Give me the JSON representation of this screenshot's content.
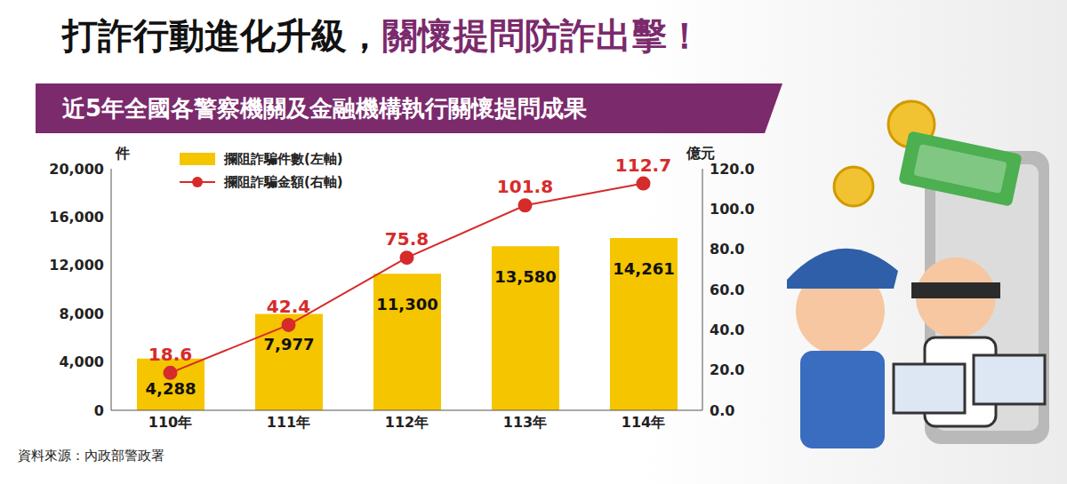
{
  "header": {
    "title": [
      "打詐行動進化升級，",
      "關懷提問防詐出擊！"
    ],
    "subtitle": "近5年全國各警察機關及金融機構執行關懷提問成果"
  },
  "source": "資料來源：內政部警政署",
  "chart_data": {
    "type": "bar",
    "categories": [
      "110年",
      "111年",
      "112年",
      "113年",
      "114年"
    ],
    "y_label": "件",
    "y2_label": "億元",
    "ylim": [
      0,
      20000
    ],
    "yticks": [
      0,
      {
        "value": 4000,
        "label": "4,000"
      },
      {
        "value": 8000,
        "label": "8,000"
      },
      {
        "value": 12000,
        "label": "12,000"
      },
      {
        "value": 16000,
        "label": "16,000"
      },
      {
        "value": 20000,
        "label": "20,000"
      }
    ],
    "y2lim": [
      0,
      120
    ],
    "y2ticks": [
      {
        "value": 0,
        "label": "0.0"
      },
      {
        "value": 20,
        "label": "20.0"
      },
      {
        "value": 40,
        "label": "40.0"
      },
      {
        "value": 60,
        "label": "60.0"
      },
      {
        "value": 80,
        "label": "80.0"
      },
      {
        "value": 100,
        "label": "100.0"
      },
      {
        "value": 120,
        "label": "120.0"
      }
    ],
    "grid": false,
    "legend": "top-left",
    "data_labels": true,
    "series": [
      {
        "name": "攔阻詐騙件數(左軸)",
        "type": "bar",
        "color": "#f5c500",
        "values": [
          4288,
          7977,
          11300,
          13580,
          14261
        ],
        "value_labels": [
          "4,288",
          "7,977",
          "11,300",
          "13,580",
          "14,261"
        ]
      },
      {
        "name": "攔阻詐騙金額(右軸)",
        "type": "line",
        "color": "#d62b2b",
        "marker": "circle",
        "axis": "y2",
        "values": [
          18.6,
          42.4,
          75.8,
          101.8,
          112.7
        ]
      }
    ]
  }
}
